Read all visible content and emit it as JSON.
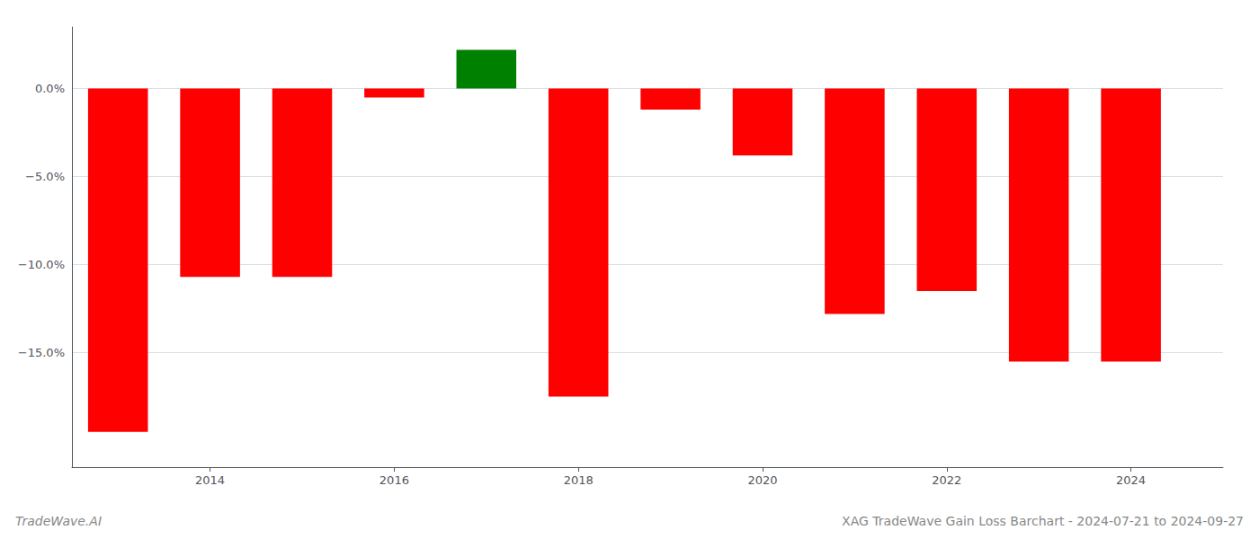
{
  "chart_data": {
    "type": "bar",
    "title": "XAG TradeWave Gain Loss Barchart - 2024-07-21 to 2024-09-27",
    "subtitle": "TradeWave.AI",
    "x": [
      2013,
      2014,
      2015,
      2016,
      2017,
      2018,
      2019,
      2020,
      2021,
      2022,
      2023,
      2024
    ],
    "values": [
      -19.5,
      -10.7,
      -10.7,
      -0.5,
      2.2,
      -17.5,
      -1.2,
      -3.8,
      -12.8,
      -11.5,
      -15.5,
      -15.5
    ],
    "colors": [
      "#ff0000",
      "#ff0000",
      "#ff0000",
      "#ff0000",
      "#008000",
      "#ff0000",
      "#ff0000",
      "#ff0000",
      "#ff0000",
      "#ff0000",
      "#ff0000",
      "#ff0000"
    ],
    "xlim": [
      2012.5,
      2025.0
    ],
    "xticks": [
      2014,
      2016,
      2018,
      2020,
      2022,
      2024
    ],
    "ylim": [
      -21.5,
      3.5
    ],
    "yticks": [
      {
        "value": 0.0,
        "label": "0.0%"
      },
      {
        "value": -5.0,
        "label": "−5.0%"
      },
      {
        "value": -10.0,
        "label": "−10.0%"
      },
      {
        "value": -15.0,
        "label": "−15.0%"
      }
    ],
    "grid": true
  }
}
